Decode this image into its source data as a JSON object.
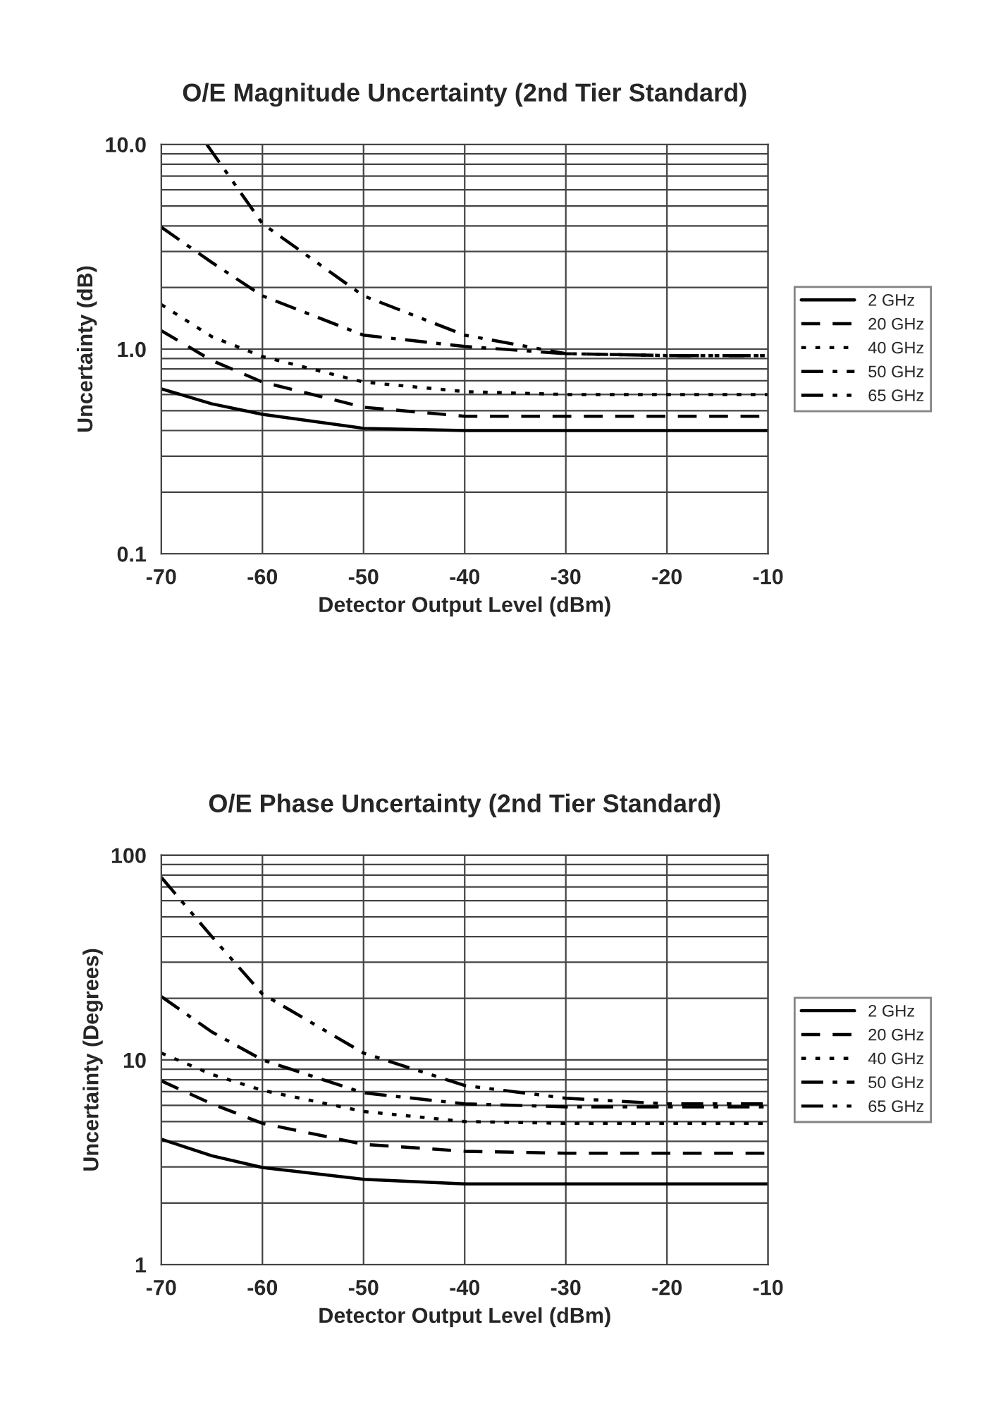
{
  "chart_data": [
    {
      "type": "line",
      "title": "O/E Magnitude Uncertainty (2nd Tier Standard)",
      "xlabel": "Detector Output Level (dBm)",
      "ylabel": "Uncertainty (dB)",
      "log": "y",
      "grid": true,
      "legend": "right",
      "xlim": [
        -70,
        -10
      ],
      "xticks": [
        -70,
        -60,
        -50,
        -40,
        -30,
        -20,
        -10
      ],
      "ylim": [
        0.1,
        10
      ],
      "yticks": [
        {
          "value": 0.1,
          "label": "0.1"
        },
        {
          "value": 1,
          "label": "1.0"
        },
        {
          "value": 10,
          "label": "10.0"
        }
      ],
      "series": [
        {
          "name": "2 GHz",
          "color": "#000000",
          "line_style": "solid",
          "x": [
            -70,
            -65,
            -60,
            -50,
            -40,
            -30,
            -20,
            -10
          ],
          "values": [
            0.64,
            0.54,
            0.48,
            0.41,
            0.4,
            0.4,
            0.4,
            0.4
          ]
        },
        {
          "name": "20 GHz",
          "color": "#000000",
          "line_style": "dashed",
          "x": [
            -70,
            -65,
            -60,
            -50,
            -40,
            -30,
            -20,
            -10
          ],
          "values": [
            1.23,
            0.88,
            0.69,
            0.52,
            0.47,
            0.47,
            0.47,
            0.47
          ]
        },
        {
          "name": "40 GHz",
          "color": "#000000",
          "line_style": "dotted",
          "x": [
            -70,
            -65,
            -60,
            -50,
            -40,
            -30,
            -20,
            -10
          ],
          "values": [
            1.65,
            1.15,
            0.92,
            0.69,
            0.62,
            0.6,
            0.6,
            0.6
          ]
        },
        {
          "name": "50 GHz",
          "color": "#000000",
          "line_style": "dashdot",
          "x": [
            -70,
            -65,
            -60,
            -50,
            -40,
            -30,
            -20,
            -10
          ],
          "values": [
            3.94,
            2.65,
            1.82,
            1.17,
            1.03,
            0.95,
            0.93,
            0.93
          ]
        },
        {
          "name": "65 GHz",
          "color": "#000000",
          "line_style": "dashdotdot",
          "x": [
            -65.5,
            -60,
            -50,
            -40,
            -30,
            -20,
            -10
          ],
          "values": [
            10,
            4.1,
            1.82,
            1.17,
            0.95,
            0.93,
            0.93
          ]
        }
      ]
    },
    {
      "type": "line",
      "title": "O/E Phase Uncertainty (2nd Tier Standard)",
      "xlabel": "Detector Output Level (dBm)",
      "ylabel": "Uncertainty (Degrees)",
      "log": "y",
      "grid": true,
      "legend": "right",
      "xlim": [
        -70,
        -10
      ],
      "xticks": [
        -70,
        -60,
        -50,
        -40,
        -30,
        -20,
        -10
      ],
      "ylim": [
        1,
        100
      ],
      "yticks": [
        1,
        10,
        100
      ],
      "series": [
        {
          "name": "2 GHz",
          "color": "#000000",
          "line_style": "solid",
          "x": [
            -70,
            -65,
            -60,
            -50,
            -40,
            -30,
            -20,
            -10
          ],
          "values": [
            4.1,
            3.4,
            2.98,
            2.61,
            2.48,
            2.48,
            2.48,
            2.48
          ]
        },
        {
          "name": "20 GHz",
          "color": "#000000",
          "line_style": "dashed",
          "x": [
            -70,
            -65,
            -60,
            -50,
            -40,
            -30,
            -20,
            -10
          ],
          "values": [
            7.9,
            6.1,
            4.9,
            3.87,
            3.58,
            3.5,
            3.5,
            3.5
          ]
        },
        {
          "name": "40 GHz",
          "color": "#000000",
          "line_style": "dotted",
          "x": [
            -70,
            -65,
            -60,
            -50,
            -40,
            -30,
            -20,
            -10
          ],
          "values": [
            10.8,
            8.5,
            7.1,
            5.6,
            5,
            4.9,
            4.9,
            4.9
          ]
        },
        {
          "name": "50 GHz",
          "color": "#000000",
          "line_style": "dashdot",
          "x": [
            -70,
            -65,
            -60,
            -50,
            -40,
            -30,
            -20,
            -10
          ],
          "values": [
            20.4,
            13.7,
            10,
            6.9,
            6.1,
            5.9,
            5.9,
            5.9
          ]
        },
        {
          "name": "65 GHz",
          "color": "#000000",
          "line_style": "dashdotdot",
          "x": [
            -70,
            -65,
            -60,
            -50,
            -40,
            -30,
            -20,
            -10
          ],
          "values": [
            78,
            40,
            21,
            10.8,
            7.5,
            6.5,
            6.1,
            6.1
          ]
        }
      ]
    }
  ]
}
